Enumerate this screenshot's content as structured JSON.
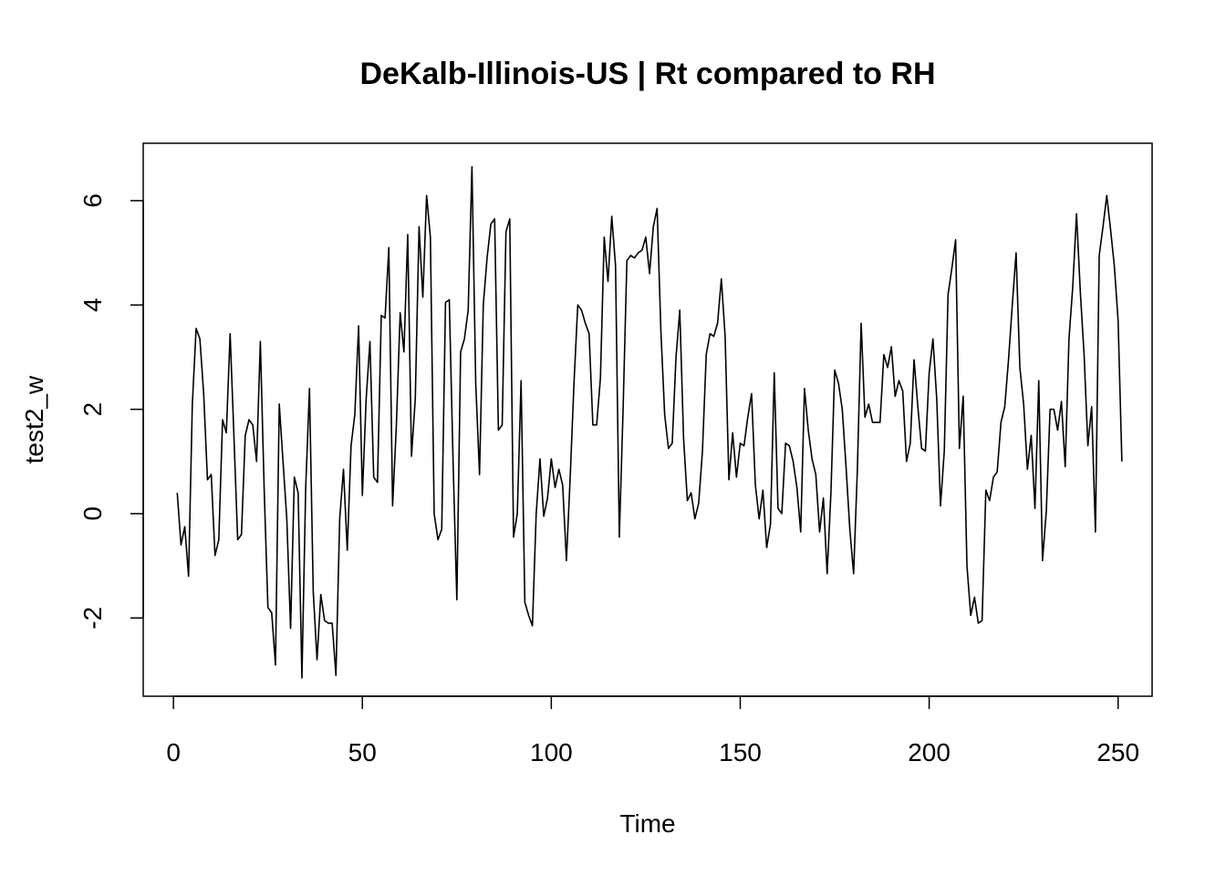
{
  "chart_data": {
    "type": "line",
    "title": "DeKalb-Illinois-US | Rt compared to RH",
    "xlabel": "Time",
    "ylabel": "test2_w",
    "xlim": [
      -8,
      259
    ],
    "ylim": [
      -3.5,
      7.1
    ],
    "xticks": [
      0,
      50,
      100,
      150,
      200,
      250
    ],
    "yticks": [
      -2,
      0,
      2,
      4,
      6
    ],
    "xtick_labels": [
      "0",
      "50",
      "100",
      "150",
      "200",
      "250"
    ],
    "ytick_labels": [
      "-2",
      "0",
      "2",
      "4",
      "6"
    ],
    "grid": false,
    "legend": "none",
    "x_start": 1,
    "x_step": 1,
    "values": [
      0.4,
      -0.6,
      -0.25,
      -1.2,
      2.1,
      3.55,
      3.35,
      2.3,
      0.65,
      0.75,
      -0.8,
      -0.5,
      1.8,
      1.55,
      3.45,
      1.5,
      -0.5,
      -0.4,
      1.5,
      1.8,
      1.7,
      1.0,
      3.3,
      0.5,
      -1.8,
      -1.9,
      -2.9,
      2.1,
      1.0,
      -0.1,
      -2.2,
      0.7,
      0.4,
      -3.15,
      0.5,
      2.4,
      -1.5,
      -2.8,
      -1.55,
      -2.05,
      -2.1,
      -2.1,
      -3.1,
      -0.1,
      0.85,
      -0.7,
      1.3,
      1.9,
      3.6,
      0.35,
      2.2,
      3.3,
      0.7,
      0.6,
      3.8,
      3.75,
      5.1,
      0.15,
      1.7,
      3.85,
      3.1,
      5.35,
      1.1,
      2.2,
      5.5,
      4.15,
      6.1,
      5.3,
      0.0,
      -0.5,
      -0.3,
      4.05,
      4.1,
      1.0,
      -1.65,
      3.1,
      3.35,
      3.9,
      6.65,
      2.5,
      0.75,
      4.0,
      4.9,
      5.55,
      5.65,
      1.6,
      1.7,
      5.4,
      5.65,
      -0.45,
      0.0,
      2.55,
      -1.7,
      -1.95,
      -2.15,
      0.0,
      1.05,
      -0.05,
      0.3,
      1.05,
      0.5,
      0.85,
      0.55,
      -0.9,
      0.7,
      2.5,
      4.0,
      3.9,
      3.65,
      3.45,
      1.7,
      1.7,
      2.6,
      5.3,
      4.45,
      5.7,
      4.75,
      -0.45,
      2.0,
      4.85,
      4.95,
      4.9,
      5.0,
      5.05,
      5.3,
      4.6,
      5.5,
      5.85,
      3.5,
      1.9,
      1.25,
      1.35,
      3.0,
      3.9,
      1.45,
      0.25,
      0.4,
      -0.1,
      0.2,
      1.2,
      3.05,
      3.45,
      3.4,
      3.65,
      4.5,
      3.4,
      0.65,
      1.55,
      0.7,
      1.35,
      1.3,
      1.85,
      2.3,
      0.55,
      -0.1,
      0.45,
      -0.65,
      -0.2,
      2.7,
      0.1,
      0.0,
      1.35,
      1.3,
      1.0,
      0.5,
      -0.35,
      2.4,
      1.6,
      1.05,
      0.75,
      -0.35,
      0.3,
      -1.15,
      0.4,
      2.75,
      2.5,
      2.0,
      0.9,
      -0.3,
      -1.15,
      0.85,
      3.65,
      1.85,
      2.1,
      1.75,
      1.75,
      1.75,
      3.05,
      2.8,
      3.2,
      2.25,
      2.55,
      2.35,
      1.0,
      1.35,
      2.95,
      2.05,
      1.25,
      1.2,
      2.7,
      3.35,
      2.2,
      0.15,
      1.2,
      4.2,
      4.7,
      5.25,
      1.25,
      2.25,
      -1.0,
      -1.95,
      -1.6,
      -2.1,
      -2.05,
      0.45,
      0.25,
      0.7,
      0.8,
      1.75,
      2.05,
      2.95,
      4.0,
      5.0,
      2.8,
      2.1,
      0.85,
      1.5,
      0.1,
      2.55,
      -0.9,
      0.05,
      2.0,
      2.0,
      1.6,
      2.15,
      0.9,
      3.35,
      4.35,
      5.75,
      4.25,
      3.05,
      1.3,
      2.05,
      -0.35,
      4.95,
      5.5,
      6.1,
      5.45,
      4.75,
      3.7,
      1.0
    ]
  }
}
